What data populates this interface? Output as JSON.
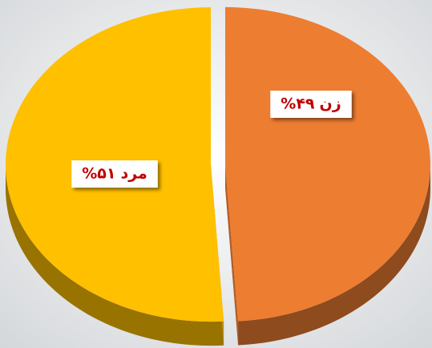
{
  "chart_data": {
    "type": "pie",
    "categories": [
      "زن",
      "مرد"
    ],
    "values": [
      49,
      51
    ],
    "value_labels": [
      "%۴۹",
      "%۵۱"
    ],
    "colors": [
      "#ED7D31",
      "#FFC000"
    ]
  }
}
